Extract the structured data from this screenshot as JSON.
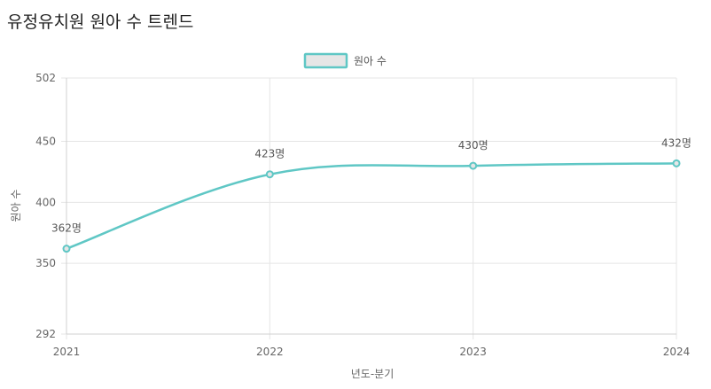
{
  "colors": {
    "series": "#5fc7c5",
    "legend_fill": "#e6e6e6",
    "grid": "#e5e5e5",
    "text": "#666666"
  },
  "chart_data": {
    "type": "line",
    "title": "유정유치원 원아 수 트렌드",
    "categories": [
      "2021",
      "2022",
      "2023",
      "2024"
    ],
    "series": [
      {
        "name": "원아 수",
        "values": [
          362,
          423,
          430,
          432
        ],
        "labels": [
          "362명",
          "423명",
          "430명",
          "432명"
        ]
      }
    ],
    "xlabel": "년도-분기",
    "ylabel": "원아 수",
    "ylim": [
      292,
      502
    ],
    "yticks": [
      292,
      350,
      400,
      450,
      502
    ],
    "ytick_labels": [
      "292",
      "350",
      "400",
      "450",
      "502"
    ],
    "legend": "top-center",
    "grid": true
  }
}
